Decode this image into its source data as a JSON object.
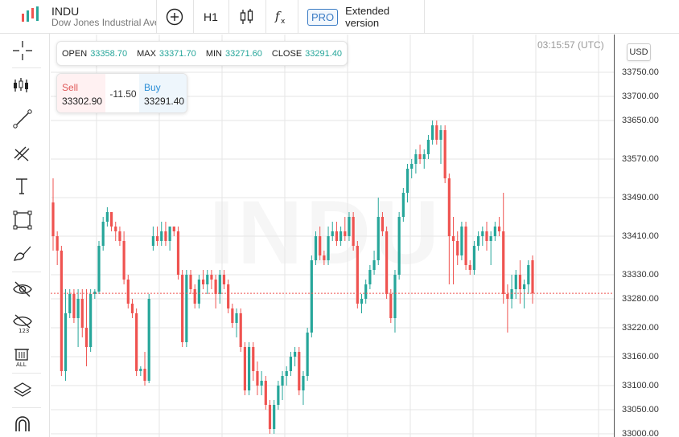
{
  "symbol": {
    "name": "INDU",
    "description": "Dow Jones Industrial Ave",
    "watermark": "INDU"
  },
  "toolbar": {
    "add_icon": "plus-circle-icon",
    "timeframe": "H1",
    "chart_type_icon": "candles-icon",
    "indicator_icon": "fx-icon",
    "pro_label": "PRO",
    "extended_label": "Extended version"
  },
  "left_tools": [
    "crosshair-icon",
    "chart-type-icon",
    "trendline-icon",
    "fib-icon",
    "text-icon",
    "rectangle-icon",
    "brush-icon",
    "hide-drawings-icon",
    "hide-indicators-icon",
    "delete-all-icon",
    "layers-icon",
    "magnet-icon"
  ],
  "ohlc": {
    "open_label": "OPEN",
    "open": "33358.70",
    "max_label": "MAX",
    "max": "33371.70",
    "min_label": "MIN",
    "min": "33271.60",
    "close_label": "CLOSE",
    "close": "33291.40"
  },
  "trade": {
    "sell_label": "Sell",
    "sell_price": "33302.90",
    "spread": "-11.50",
    "buy_label": "Buy",
    "buy_price": "33291.40"
  },
  "time": "03:15:57 (UTC)",
  "currency": "USD",
  "price_axis": {
    "labels": [
      {
        "text": "33750.00",
        "v": 33750
      },
      {
        "text": "33700.00",
        "v": 33700
      },
      {
        "text": "33650.00",
        "v": 33650
      },
      {
        "text": "33570.00",
        "v": 33570
      },
      {
        "text": "33490.00",
        "v": 33490
      },
      {
        "text": "33410.00",
        "v": 33410
      },
      {
        "text": "33330.00",
        "v": 33330
      },
      {
        "text": "33280.00",
        "v": 33280
      },
      {
        "text": "33220.00",
        "v": 33220
      },
      {
        "text": "33160.00",
        "v": 33160
      },
      {
        "text": "33100.00",
        "v": 33100
      },
      {
        "text": "33050.00",
        "v": 33050
      },
      {
        "text": "33000.00",
        "v": 33000
      }
    ]
  },
  "colors": {
    "up": "#26a69a",
    "down": "#ef5350",
    "grid": "#e6e6e6",
    "current_line": "#ef5350"
  },
  "chart_data": {
    "type": "candlestick",
    "current_price": 33291.4,
    "ylim": [
      33000,
      33780
    ],
    "candles": [
      [
        33480,
        33530,
        33380,
        33410
      ],
      [
        33410,
        33420,
        33350,
        33380
      ],
      [
        33380,
        33390,
        33120,
        33130
      ],
      [
        33130,
        33300,
        33110,
        33250
      ],
      [
        33250,
        33300,
        33240,
        33290
      ],
      [
        33290,
        33300,
        33230,
        33240
      ],
      [
        33240,
        33300,
        33180,
        33280
      ],
      [
        33280,
        33300,
        33200,
        33220
      ],
      [
        33220,
        33300,
        33140,
        33180
      ],
      [
        33180,
        33300,
        33170,
        33290
      ],
      [
        33290,
        33300,
        33280,
        33295
      ],
      [
        33295,
        33400,
        33290,
        33390
      ],
      [
        33390,
        33450,
        33380,
        33440
      ],
      [
        33440,
        33470,
        33430,
        33460
      ],
      [
        33460,
        33460,
        33420,
        33430
      ],
      [
        33430,
        33440,
        33400,
        33420
      ],
      [
        33420,
        33430,
        33390,
        33400
      ],
      [
        33400,
        33420,
        33310,
        33320
      ],
      [
        33320,
        33330,
        33260,
        33270
      ],
      [
        33270,
        33280,
        33240,
        33250
      ],
      [
        33250,
        33260,
        33120,
        33130
      ],
      [
        33130,
        33140,
        33120,
        33135
      ],
      [
        33135,
        33170,
        33100,
        33110
      ],
      [
        33110,
        33290,
        33105,
        33280
      ],
      [
        33390,
        33430,
        33380,
        33410
      ],
      [
        33410,
        33430,
        33390,
        33400
      ],
      [
        33400,
        33440,
        33390,
        33420
      ],
      [
        33420,
        33440,
        33390,
        33400
      ],
      [
        33400,
        33430,
        33380,
        33430
      ],
      [
        33430,
        33430,
        33410,
        33420
      ],
      [
        33420,
        33430,
        33320,
        33330
      ],
      [
        33330,
        33340,
        33180,
        33190
      ],
      [
        33190,
        33340,
        33180,
        33330
      ],
      [
        33330,
        33340,
        33290,
        33300
      ],
      [
        33300,
        33310,
        33260,
        33270
      ],
      [
        33270,
        33330,
        33260,
        33320
      ],
      [
        33320,
        33340,
        33300,
        33310
      ],
      [
        33310,
        33340,
        33290,
        33330
      ],
      [
        33330,
        33340,
        33300,
        33320
      ],
      [
        33320,
        33330,
        33260,
        33290
      ],
      [
        33290,
        33340,
        33270,
        33330
      ],
      [
        33330,
        33340,
        33300,
        33310
      ],
      [
        33310,
        33320,
        33250,
        33260
      ],
      [
        33260,
        33270,
        33220,
        33230
      ],
      [
        33230,
        33260,
        33200,
        33250
      ],
      [
        33250,
        33260,
        33170,
        33180
      ],
      [
        33180,
        33190,
        33080,
        33090
      ],
      [
        33090,
        33190,
        33080,
        33180
      ],
      [
        33180,
        33190,
        33110,
        33130
      ],
      [
        33130,
        33150,
        33080,
        33100
      ],
      [
        33100,
        33130,
        33080,
        33110
      ],
      [
        33110,
        33120,
        33050,
        33060
      ],
      [
        33060,
        33070,
        33000,
        33010
      ],
      [
        33010,
        33070,
        33000,
        33060
      ],
      [
        33060,
        33110,
        33050,
        33100
      ],
      [
        33100,
        33130,
        33070,
        33120
      ],
      [
        33120,
        33140,
        33100,
        33130
      ],
      [
        33130,
        33170,
        33120,
        33160
      ],
      [
        33160,
        33180,
        33140,
        33170
      ],
      [
        33170,
        33180,
        33080,
        33090
      ],
      [
        33090,
        33130,
        33060,
        33120
      ],
      [
        33120,
        33220,
        33110,
        33210
      ],
      [
        33210,
        33370,
        33200,
        33360
      ],
      [
        33360,
        33420,
        33350,
        33410
      ],
      [
        33410,
        33430,
        33360,
        33370
      ],
      [
        33370,
        33380,
        33350,
        33360
      ],
      [
        33360,
        33430,
        33350,
        33410
      ],
      [
        33410,
        33440,
        33400,
        33420
      ],
      [
        33420,
        33440,
        33390,
        33400
      ],
      [
        33400,
        33430,
        33390,
        33420
      ],
      [
        33420,
        33450,
        33400,
        33410
      ],
      [
        33410,
        33460,
        33400,
        33450
      ],
      [
        33450,
        33460,
        33380,
        33390
      ],
      [
        33390,
        33400,
        33260,
        33270
      ],
      [
        33270,
        33290,
        33250,
        33280
      ],
      [
        33280,
        33320,
        33270,
        33310
      ],
      [
        33310,
        33350,
        33300,
        33340
      ],
      [
        33340,
        33380,
        33330,
        33360
      ],
      [
        33360,
        33490,
        33350,
        33450
      ],
      [
        33450,
        33460,
        33410,
        33420
      ],
      [
        33420,
        33430,
        33280,
        33290
      ],
      [
        33290,
        33300,
        33230,
        33240
      ],
      [
        33240,
        33340,
        33210,
        33330
      ],
      [
        33330,
        33460,
        33320,
        33450
      ],
      [
        33450,
        33510,
        33440,
        33500
      ],
      [
        33500,
        33560,
        33480,
        33550
      ],
      [
        33550,
        33570,
        33530,
        33560
      ],
      [
        33560,
        33590,
        33540,
        33580
      ],
      [
        33580,
        33600,
        33560,
        33570
      ],
      [
        33570,
        33590,
        33550,
        33580
      ],
      [
        33580,
        33620,
        33570,
        33610
      ],
      [
        33610,
        33650,
        33600,
        33640
      ],
      [
        33640,
        33650,
        33600,
        33610
      ],
      [
        33610,
        33640,
        33560,
        33630
      ],
      [
        33630,
        33640,
        33520,
        33530
      ],
      [
        33530,
        33540,
        33310,
        33410
      ],
      [
        33410,
        33450,
        33310,
        33400
      ],
      [
        33400,
        33420,
        33350,
        33370
      ],
      [
        33370,
        33440,
        33360,
        33430
      ],
      [
        33430,
        33440,
        33340,
        33350
      ],
      [
        33350,
        33360,
        33330,
        33340
      ],
      [
        33340,
        33400,
        33330,
        33390
      ],
      [
        33390,
        33420,
        33380,
        33410
      ],
      [
        33410,
        33430,
        33390,
        33420
      ],
      [
        33420,
        33440,
        33380,
        33400
      ],
      [
        33400,
        33420,
        33350,
        33410
      ],
      [
        33410,
        33440,
        33400,
        33430
      ],
      [
        33430,
        33450,
        33410,
        33420
      ],
      [
        33420,
        33500,
        33270,
        33290
      ],
      [
        33290,
        33310,
        33210,
        33280
      ],
      [
        33280,
        33330,
        33260,
        33300
      ],
      [
        33300,
        33340,
        33280,
        33330
      ],
      [
        33330,
        33360,
        33270,
        33300
      ],
      [
        33300,
        33320,
        33260,
        33310
      ],
      [
        33310,
        33360,
        33290,
        33350
      ],
      [
        33360,
        33370,
        33270,
        33291.4
      ]
    ]
  }
}
